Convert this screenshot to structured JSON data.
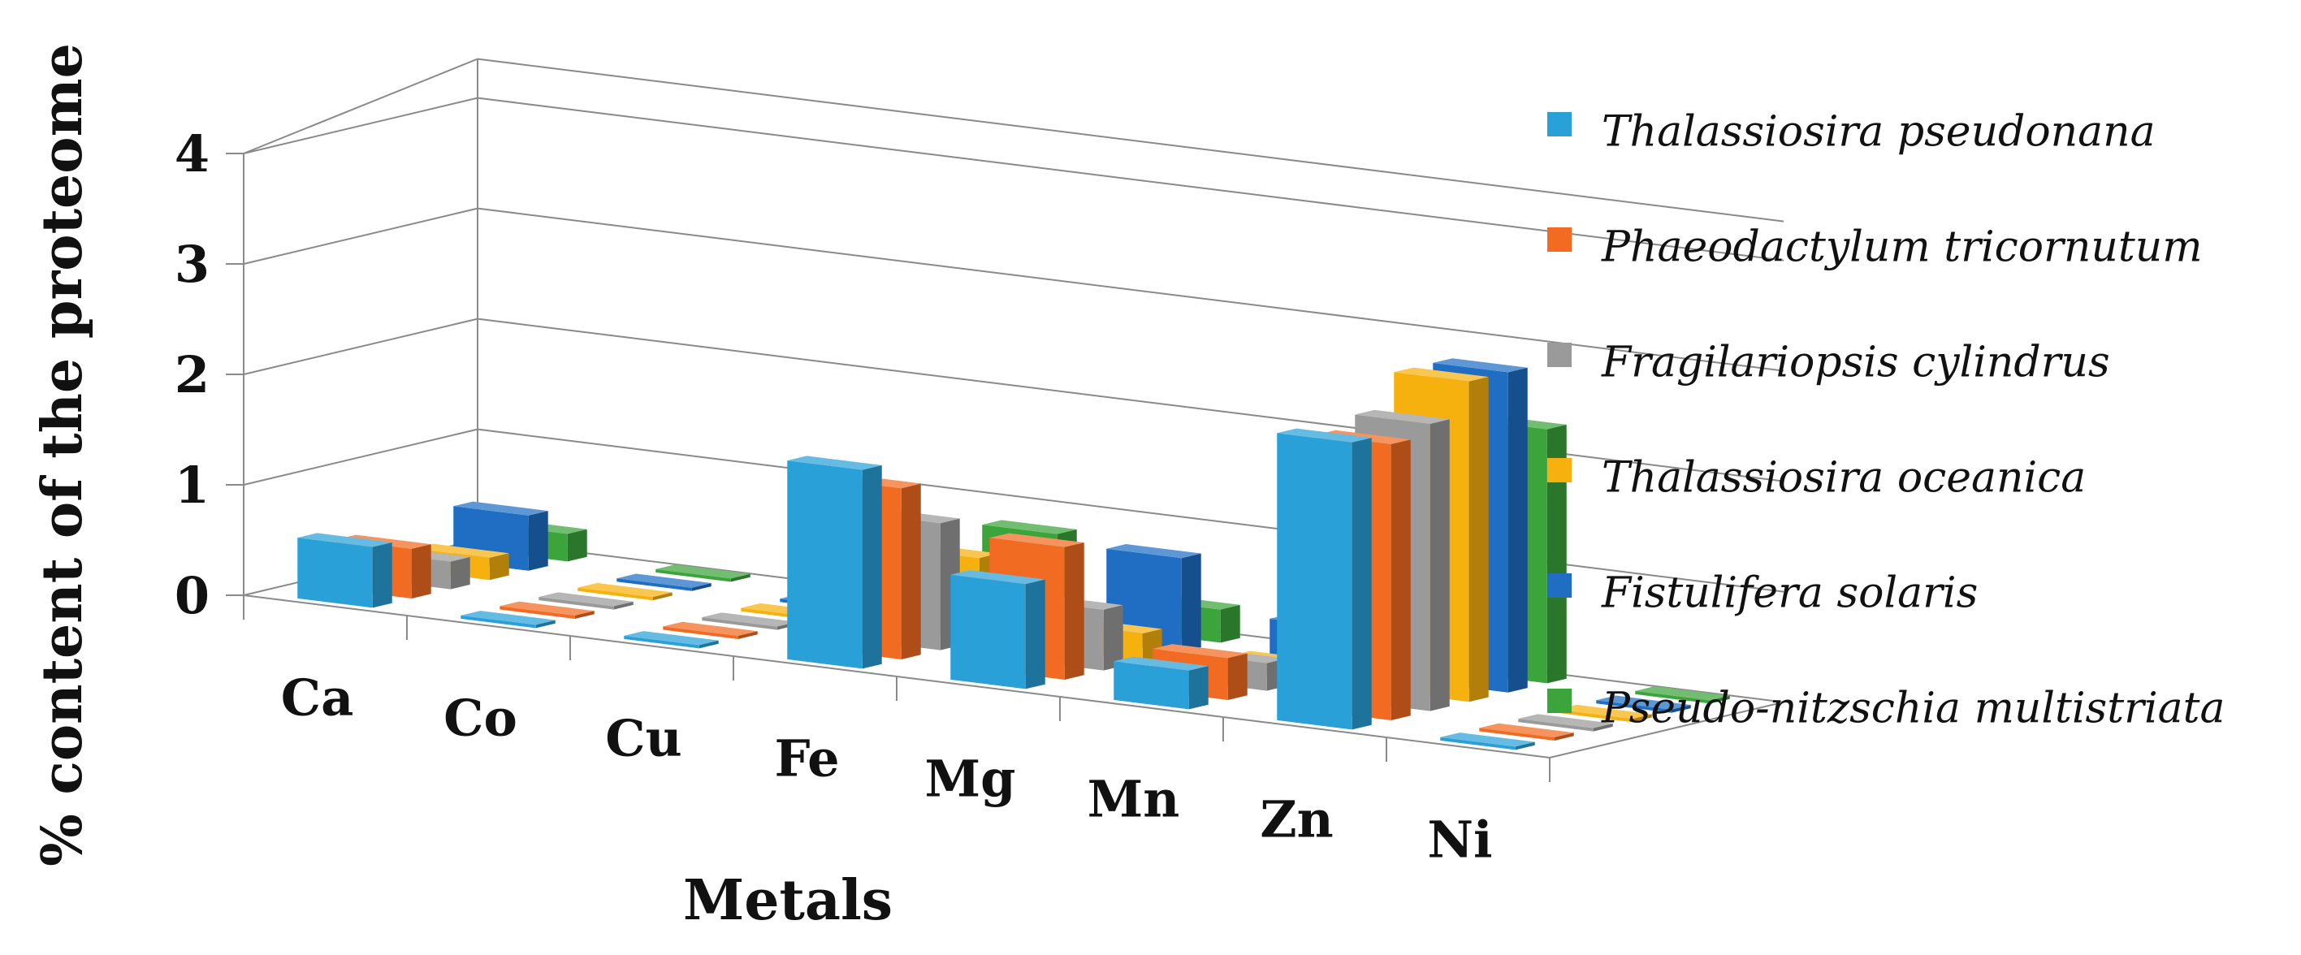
{
  "chart_data": {
    "type": "bar",
    "subtype": "3d-clustered-column",
    "title": "",
    "xlabel": "Metals",
    "ylabel": "% content of the proteome",
    "ylim": [
      0,
      4
    ],
    "yticks": [
      "0",
      "1",
      "2",
      "3",
      "4"
    ],
    "grid": true,
    "legend_position": "right",
    "categories": [
      "Ca",
      "Co",
      "Cu",
      "Fe",
      "Mg",
      "Mn",
      "Zn",
      "Ni"
    ],
    "series": [
      {
        "name": "Thalassiosira pseudonana",
        "color": "#2aa0d8",
        "values": [
          0.55,
          0.03,
          0.03,
          1.8,
          0.95,
          0.35,
          2.6,
          0.03
        ]
      },
      {
        "name": "Phaeodactylum tricornutum",
        "color": "#f26b22",
        "values": [
          0.45,
          0.03,
          0.03,
          1.55,
          1.2,
          0.38,
          2.5,
          0.03
        ]
      },
      {
        "name": "Fragilariopsis cylindrus",
        "color": "#9a9a9a",
        "values": [
          0.25,
          0.03,
          0.03,
          1.15,
          0.55,
          0.25,
          2.6,
          0.03
        ]
      },
      {
        "name": "Thalassiosira oceanica",
        "color": "#f7b10e",
        "values": [
          0.2,
          0.03,
          0.03,
          0.75,
          0.25,
          0.15,
          2.9,
          0.03
        ]
      },
      {
        "name": "Fistulifera solaris",
        "color": "#1f6ec4",
        "values": [
          0.5,
          0.03,
          0.03,
          0.45,
          0.85,
          0.4,
          2.9,
          0.03
        ]
      },
      {
        "name": "Pseudo-nitzschia multistriata",
        "color": "#3ba43b",
        "values": [
          0.25,
          0.03,
          0.03,
          0.8,
          0.3,
          0.1,
          2.3,
          0.03
        ]
      }
    ]
  }
}
